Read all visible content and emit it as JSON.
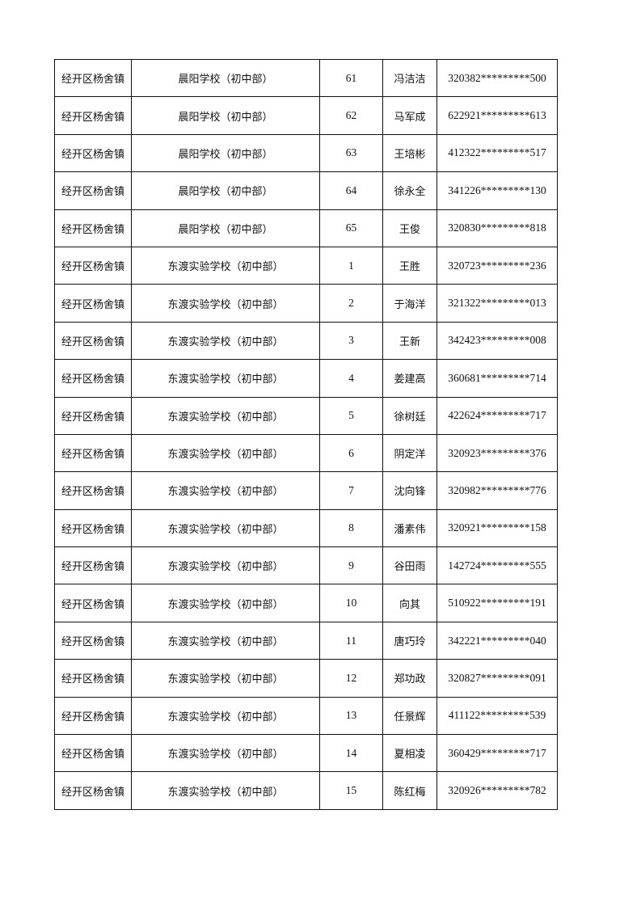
{
  "rows": [
    [
      "经开区杨舍镇",
      "晨阳学校（初中部）",
      "61",
      "冯洁洁",
      "320382*********500"
    ],
    [
      "经开区杨舍镇",
      "晨阳学校（初中部）",
      "62",
      "马军成",
      "622921*********613"
    ],
    [
      "经开区杨舍镇",
      "晨阳学校（初中部）",
      "63",
      "王培彬",
      "412322*********517"
    ],
    [
      "经开区杨舍镇",
      "晨阳学校（初中部）",
      "64",
      "徐永全",
      "341226*********130"
    ],
    [
      "经开区杨舍镇",
      "晨阳学校（初中部）",
      "65",
      "王俊",
      "320830*********818"
    ],
    [
      "经开区杨舍镇",
      "东渡实验学校（初中部）",
      "1",
      "王胜",
      "320723*********236"
    ],
    [
      "经开区杨舍镇",
      "东渡实验学校（初中部）",
      "2",
      "于海洋",
      "321322*********013"
    ],
    [
      "经开区杨舍镇",
      "东渡实验学校（初中部）",
      "3",
      "王新",
      "342423*********008"
    ],
    [
      "经开区杨舍镇",
      "东渡实验学校（初中部）",
      "4",
      "姜建高",
      "360681*********714"
    ],
    [
      "经开区杨舍镇",
      "东渡实验学校（初中部）",
      "5",
      "徐树廷",
      "422624*********717"
    ],
    [
      "经开区杨舍镇",
      "东渡实验学校（初中部）",
      "6",
      "阴定洋",
      "320923*********376"
    ],
    [
      "经开区杨舍镇",
      "东渡实验学校（初中部）",
      "7",
      "沈向锋",
      "320982*********776"
    ],
    [
      "经开区杨舍镇",
      "东渡实验学校（初中部）",
      "8",
      "潘素伟",
      "320921*********158"
    ],
    [
      "经开区杨舍镇",
      "东渡实验学校（初中部）",
      "9",
      "谷田雨",
      "142724*********555"
    ],
    [
      "经开区杨舍镇",
      "东渡实验学校（初中部）",
      "10",
      "向其",
      "510922*********191"
    ],
    [
      "经开区杨舍镇",
      "东渡实验学校（初中部）",
      "11",
      "唐巧玲",
      "342221*********040"
    ],
    [
      "经开区杨舍镇",
      "东渡实验学校（初中部）",
      "12",
      "郑功政",
      "320827*********091"
    ],
    [
      "经开区杨舍镇",
      "东渡实验学校（初中部）",
      "13",
      "任景辉",
      "411122*********539"
    ],
    [
      "经开区杨舍镇",
      "东渡实验学校（初中部）",
      "14",
      "夏相凌",
      "360429*********717"
    ],
    [
      "经开区杨舍镇",
      "东渡实验学校（初中部）",
      "15",
      "陈红梅",
      "320926*********782"
    ]
  ]
}
